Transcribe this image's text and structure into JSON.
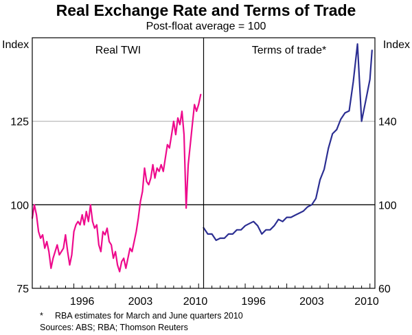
{
  "title": "Real Exchange Rate and Terms of Trade",
  "subtitle": "Post-float average = 100",
  "footnotes": {
    "star": "*",
    "note": "RBA estimates for March and June quarters 2010",
    "sources": "Sources: ABS; RBA; Thomson Reuters"
  },
  "colors": {
    "twi": "#ee0a8c",
    "tot": "#2b2e92",
    "grid": "#b3b3b3"
  },
  "chart_data": [
    {
      "type": "line",
      "panel": "left",
      "title": "Real TWI",
      "ylabel": "Index",
      "ylim": [
        75,
        150
      ],
      "yticks": [
        75,
        100,
        125
      ],
      "xlim": [
        1990,
        2010.6
      ],
      "xticks": [
        1996,
        2003,
        2010
      ],
      "series": [
        {
          "name": "Real TWI",
          "x": [
            1990.0,
            1990.25,
            1990.5,
            1990.75,
            1991.0,
            1991.25,
            1991.5,
            1991.75,
            1992.0,
            1992.25,
            1992.5,
            1992.75,
            1993.0,
            1993.25,
            1993.5,
            1993.75,
            1994.0,
            1994.25,
            1994.5,
            1994.75,
            1995.0,
            1995.25,
            1995.5,
            1995.75,
            1996.0,
            1996.25,
            1996.5,
            1996.75,
            1997.0,
            1997.25,
            1997.5,
            1997.75,
            1998.0,
            1998.25,
            1998.5,
            1998.75,
            1999.0,
            1999.25,
            1999.5,
            1999.75,
            2000.0,
            2000.25,
            2000.5,
            2000.75,
            2001.0,
            2001.25,
            2001.5,
            2001.75,
            2002.0,
            2002.25,
            2002.5,
            2002.75,
            2003.0,
            2003.25,
            2003.5,
            2003.75,
            2004.0,
            2004.25,
            2004.5,
            2004.75,
            2005.0,
            2005.25,
            2005.5,
            2005.75,
            2006.0,
            2006.25,
            2006.5,
            2006.75,
            2007.0,
            2007.25,
            2007.5,
            2007.75,
            2008.0,
            2008.25,
            2008.5,
            2008.75,
            2009.0,
            2009.25,
            2009.5,
            2009.75,
            2010.0,
            2010.25
          ],
          "values": [
            96,
            100,
            97,
            92,
            90,
            91,
            87,
            89,
            86,
            81,
            84,
            86,
            88,
            85,
            86,
            87,
            91,
            86,
            82,
            85,
            92,
            94,
            95,
            94,
            97,
            94,
            98,
            95,
            100,
            95,
            93,
            94,
            88,
            86,
            92,
            91,
            93,
            89,
            88,
            84,
            86,
            82,
            80,
            83,
            84,
            81,
            84,
            87,
            86,
            89,
            92,
            96,
            101,
            104,
            111,
            107,
            106,
            108,
            112,
            108,
            111,
            110,
            112,
            110,
            114,
            118,
            117,
            121,
            125,
            121,
            126,
            124,
            128,
            121,
            99,
            112,
            118,
            124,
            130,
            128,
            130,
            133
          ]
        }
      ]
    },
    {
      "type": "line",
      "panel": "right",
      "title": "Terms of trade*",
      "ylabel": "Index",
      "ylim": [
        60,
        180
      ],
      "yticks": [
        60,
        100,
        140
      ],
      "xlim": [
        1990,
        2010.6
      ],
      "xticks": [
        1996,
        2003,
        2010
      ],
      "series": [
        {
          "name": "Terms of trade",
          "x": [
            1990.0,
            1990.5,
            1991.0,
            1991.5,
            1992.0,
            1992.5,
            1993.0,
            1993.5,
            1994.0,
            1994.5,
            1995.0,
            1995.5,
            1996.0,
            1996.5,
            1997.0,
            1997.5,
            1998.0,
            1998.5,
            1999.0,
            1999.5,
            2000.0,
            2000.5,
            2001.0,
            2001.5,
            2002.0,
            2002.5,
            2003.0,
            2003.5,
            2004.0,
            2004.5,
            2005.0,
            2005.5,
            2006.0,
            2006.5,
            2007.0,
            2007.5,
            2008.0,
            2008.5,
            2009.0,
            2009.5,
            2010.0,
            2010.25
          ],
          "values": [
            89,
            86,
            86,
            83,
            84,
            84,
            86,
            86,
            88,
            88,
            90,
            91,
            92,
            90,
            86,
            88,
            88,
            90,
            93,
            92,
            94,
            94,
            95,
            96,
            97,
            99,
            100,
            103,
            112,
            117,
            127,
            134,
            136,
            141,
            144,
            145,
            159,
            177,
            140,
            150,
            160,
            174
          ]
        }
      ]
    }
  ]
}
